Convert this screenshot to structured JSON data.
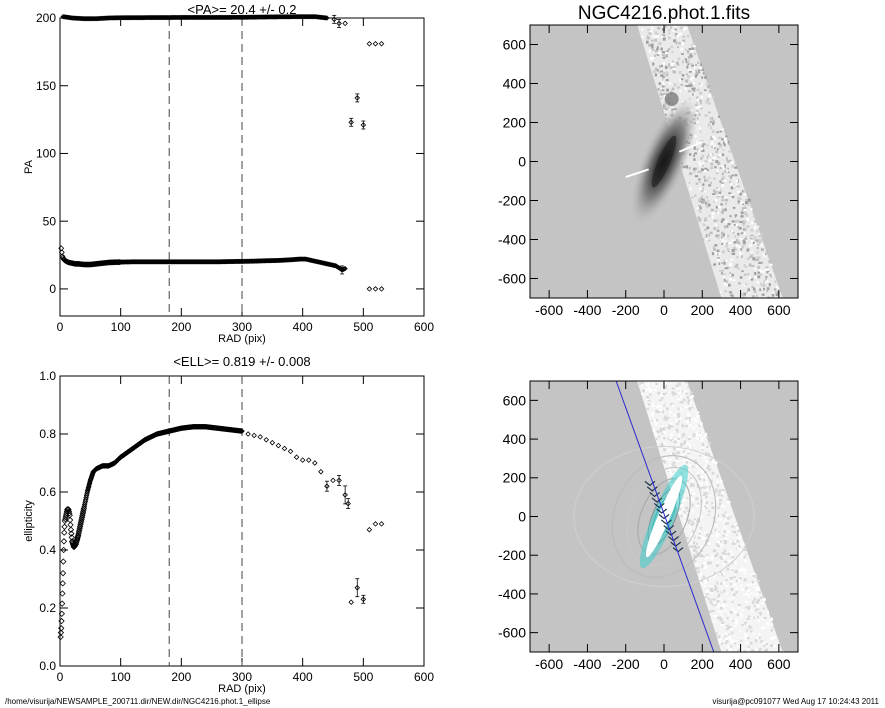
{
  "footer": {
    "path": "/home/visurija/NEWSAMPLE_200711.dir/NEW.dir/NGC4216.phot.1_ellipse",
    "user_stamp": "visurija@pc091077  Wed Aug 17 10:24:43 2011"
  },
  "chart_data": [
    {
      "type": "scatter",
      "title": "<PA>=  20.4 +/-   0.2",
      "xlabel": "RAD (pix)",
      "ylabel": "PA",
      "xlim": [
        0,
        600
      ],
      "ylim": [
        -20,
        200
      ],
      "xticks": [
        0,
        100,
        200,
        300,
        400,
        500,
        600
      ],
      "yticks": [
        0,
        50,
        100,
        150,
        200
      ],
      "vlines": [
        180,
        300
      ],
      "series": [
        {
          "points": [
            [
              2,
              30
            ],
            [
              4,
              24
            ],
            [
              6,
              22
            ],
            [
              8,
              21
            ],
            [
              10,
              20.5
            ],
            [
              12,
              20
            ],
            [
              15,
              19.5
            ],
            [
              20,
              19
            ],
            [
              25,
              18.5
            ],
            [
              30,
              18.5
            ],
            [
              40,
              18
            ],
            [
              50,
              18
            ],
            [
              60,
              18.5
            ],
            [
              70,
              19
            ],
            [
              80,
              19.5
            ],
            [
              90,
              19.7
            ],
            [
              100,
              19.8
            ],
            [
              120,
              20
            ],
            [
              140,
              20
            ],
            [
              160,
              20
            ],
            [
              180,
              20
            ],
            [
              200,
              20
            ],
            [
              220,
              20
            ],
            [
              240,
              20
            ],
            [
              260,
              20
            ],
            [
              280,
              20.2
            ],
            [
              300,
              20.3
            ],
            [
              320,
              20.5
            ],
            [
              340,
              20.8
            ],
            [
              360,
              21
            ],
            [
              380,
              21.5
            ],
            [
              395,
              22
            ],
            [
              405,
              22
            ],
            [
              415,
              21
            ],
            [
              425,
              20
            ],
            [
              435,
              19
            ],
            [
              445,
              18
            ],
            [
              455,
              17
            ],
            [
              465,
              14
            ],
            [
              470,
              15
            ],
            [
              510,
              0
            ],
            [
              520,
              0
            ],
            [
              530,
              0
            ]
          ],
          "upper_branch": [
            [
              5,
              201
            ],
            [
              20,
              200
            ],
            [
              40,
              199.5
            ],
            [
              60,
              199.5
            ],
            [
              80,
              200
            ],
            [
              100,
              200.2
            ],
            [
              150,
              200.3
            ],
            [
              200,
              200.4
            ],
            [
              250,
              200.4
            ],
            [
              300,
              200.5
            ],
            [
              350,
              200.8
            ],
            [
              400,
              201
            ],
            [
              420,
              201
            ],
            [
              440,
              200
            ],
            [
              452,
              199
            ],
            [
              460,
              196
            ],
            [
              470,
              196
            ],
            [
              510,
              181
            ],
            [
              520,
              181
            ],
            [
              530,
              181
            ]
          ],
          "outliers": [
            [
              480,
              123
            ],
            [
              490,
              141
            ],
            [
              500,
              121
            ]
          ]
        }
      ]
    },
    {
      "type": "scatter",
      "title": "<ELL>= 0.819 +/-  0.008",
      "xlabel": "RAD (pix)",
      "ylabel": "ellipticity",
      "xlim": [
        0,
        600
      ],
      "ylim": [
        0,
        1.0
      ],
      "xticks": [
        0,
        100,
        200,
        300,
        400,
        500,
        600
      ],
      "yticks": [
        0.0,
        0.2,
        0.4,
        0.6,
        0.8,
        1.0
      ],
      "vlines": [
        180,
        300
      ],
      "series": [
        {
          "points": [
            [
              1,
              0.1
            ],
            [
              2,
              0.13
            ],
            [
              3,
              0.18
            ],
            [
              4,
              0.25
            ],
            [
              5,
              0.32
            ],
            [
              6,
              0.4
            ],
            [
              7,
              0.46
            ],
            [
              8,
              0.5
            ],
            [
              10,
              0.52
            ],
            [
              12,
              0.54
            ],
            [
              14,
              0.54
            ],
            [
              16,
              0.52
            ],
            [
              18,
              0.47
            ],
            [
              20,
              0.43
            ],
            [
              23,
              0.41
            ],
            [
              26,
              0.42
            ],
            [
              30,
              0.45
            ],
            [
              35,
              0.5
            ],
            [
              40,
              0.55
            ],
            [
              45,
              0.6
            ],
            [
              50,
              0.64
            ],
            [
              55,
              0.67
            ],
            [
              60,
              0.68
            ],
            [
              70,
              0.69
            ],
            [
              80,
              0.69
            ],
            [
              90,
              0.7
            ],
            [
              100,
              0.72
            ],
            [
              120,
              0.75
            ],
            [
              140,
              0.78
            ],
            [
              160,
              0.8
            ],
            [
              180,
              0.81
            ],
            [
              200,
              0.82
            ],
            [
              220,
              0.825
            ],
            [
              240,
              0.825
            ],
            [
              260,
              0.82
            ],
            [
              280,
              0.815
            ],
            [
              300,
              0.81
            ],
            [
              310,
              0.8
            ],
            [
              320,
              0.795
            ],
            [
              330,
              0.79
            ],
            [
              340,
              0.78
            ],
            [
              350,
              0.77
            ],
            [
              360,
              0.76
            ],
            [
              370,
              0.75
            ],
            [
              380,
              0.74
            ],
            [
              390,
              0.72
            ],
            [
              400,
              0.71
            ],
            [
              410,
              0.71
            ],
            [
              420,
              0.7
            ],
            [
              430,
              0.67
            ],
            [
              440,
              0.62
            ],
            [
              450,
              0.64
            ],
            [
              460,
              0.64
            ],
            [
              470,
              0.59
            ],
            [
              475,
              0.56
            ],
            [
              480,
              0.22
            ],
            [
              490,
              0.27
            ],
            [
              500,
              0.23
            ],
            [
              510,
              0.47
            ],
            [
              520,
              0.49
            ],
            [
              530,
              0.49
            ]
          ]
        }
      ]
    },
    {
      "type": "image",
      "title": "NGC4216.phot.1.fits",
      "xlim": [
        -700,
        700
      ],
      "ylim": [
        -700,
        700
      ],
      "xticks": [
        -600,
        -400,
        -200,
        0,
        200,
        400,
        600
      ],
      "yticks": [
        -600,
        -400,
        -200,
        0,
        200,
        400,
        600
      ]
    },
    {
      "type": "image",
      "title": "",
      "xlim": [
        -700,
        700
      ],
      "ylim": [
        -700,
        700
      ],
      "xticks": [
        -600,
        -400,
        -200,
        0,
        200,
        400,
        600
      ],
      "yticks": [
        -600,
        -400,
        -200,
        0,
        200,
        400,
        600
      ]
    }
  ]
}
